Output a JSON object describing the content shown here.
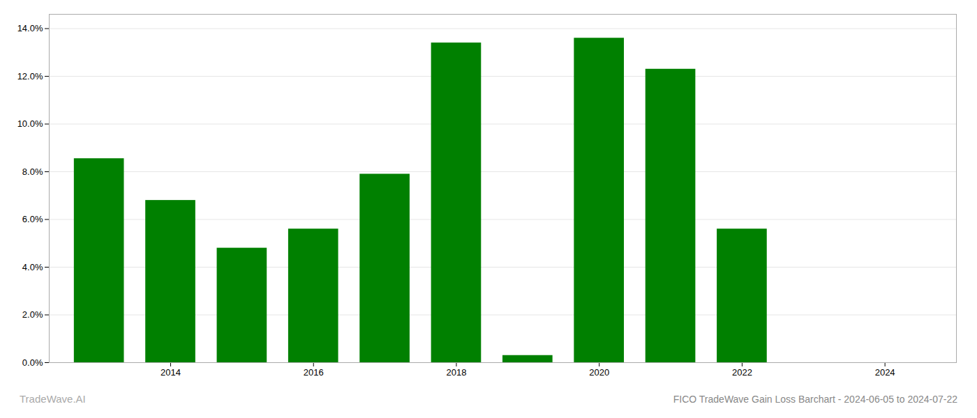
{
  "chart_data": {
    "type": "bar",
    "title": "FICO TradeWave Gain Loss Barchart - 2024-06-05 to 2024-07-22",
    "annotations": [
      "TradeWave.AI"
    ],
    "x": [
      2013,
      2014,
      2015,
      2016,
      2017,
      2018,
      2019,
      2020,
      2021,
      2022,
      2023
    ],
    "values": [
      0.0855,
      0.068,
      0.048,
      0.056,
      0.079,
      0.134,
      0.003,
      0.136,
      0.123,
      0.056,
      0.0
    ],
    "color": "#008000",
    "xlim": [
      2012.3,
      2025.0
    ],
    "xticks": [
      2014,
      2016,
      2018,
      2020,
      2022,
      2024
    ],
    "ylim": [
      0,
      0.146
    ],
    "yticks": [
      {
        "value": 0.0,
        "label": "0.0%"
      },
      {
        "value": 0.02,
        "label": "2.0%"
      },
      {
        "value": 0.04,
        "label": "4.0%"
      },
      {
        "value": 0.06,
        "label": "6.0%"
      },
      {
        "value": 0.08,
        "label": "8.0%"
      },
      {
        "value": 0.1,
        "label": "10.0%"
      },
      {
        "value": 0.12,
        "label": "12.0%"
      },
      {
        "value": 0.14,
        "label": "14.0%"
      }
    ],
    "grid": true
  }
}
